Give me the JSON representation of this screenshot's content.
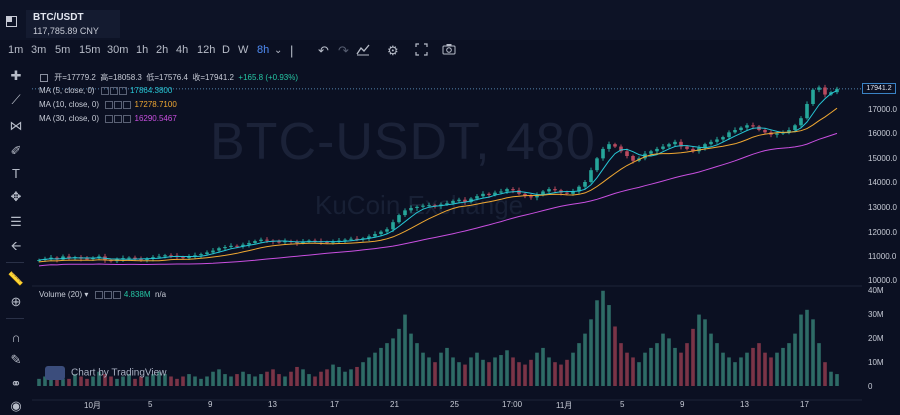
{
  "header": {
    "symbol": "BTC/USDT",
    "price_cny": "117,785.89 CNY"
  },
  "toolbar": {
    "timeframes": [
      "1m",
      "3m",
      "5m",
      "15m",
      "30m",
      "1h",
      "2h",
      "4h",
      "12h",
      "D",
      "W",
      "8h"
    ],
    "active_timeframe": "8h",
    "icons": [
      "chevron-down-icon",
      "undo-icon",
      "redo-icon",
      "indicators-icon",
      "settings-icon",
      "fullscreen-icon",
      "camera-icon"
    ]
  },
  "left_tools": [
    "crosshair-icon",
    "trendline-icon",
    "pitchfork-icon",
    "brush-icon",
    "text-icon",
    "pattern-icon",
    "fib-icon",
    "back-arrow-icon",
    "ruler-icon",
    "zoom-icon",
    "magnet-icon",
    "lock-draw-icon",
    "lock-icon",
    "eye-icon"
  ],
  "ohlc": {
    "open_label": "开=",
    "open": "17779.2",
    "high_label": "高=",
    "high": "18058.3",
    "low_label": "低=",
    "low": "17576.4",
    "close_label": "收=",
    "close": "17941.2",
    "change": "+165.8 (+0.93%)"
  },
  "indicators": [
    {
      "label": "MA (5, close, 0)",
      "value": "17864.3800",
      "color": "#26c6d4"
    },
    {
      "label": "MA (10, close, 0)",
      "value": "17278.7100",
      "color": "#f0a832"
    },
    {
      "label": "MA (30, close, 0)",
      "value": "16290.5467",
      "color": "#c94fe0"
    }
  ],
  "volume_indicator": {
    "label": "Volume (20)",
    "value": "4.838M",
    "extra": "n/a"
  },
  "price_axis": [
    "17000.0",
    "16000.0",
    "15000.0",
    "14000.0",
    "13000.0",
    "12000.0",
    "11000.0",
    "10000.0"
  ],
  "current_price_tag": "17941.2",
  "volume_axis": [
    "40M",
    "30M",
    "20M",
    "10M",
    "0"
  ],
  "time_axis": [
    "10月",
    "5",
    "9",
    "13",
    "17",
    "21",
    "25",
    "17:00",
    "11月",
    "5",
    "9",
    "13",
    "17"
  ],
  "watermark": {
    "big": "BTC-USDT, 480",
    "small": "KuCoin Exchange"
  },
  "tv_logo": "Chart by TradingView",
  "colors": {
    "up": "#26a69a",
    "down": "#b94a5e",
    "bg": "#0b1022",
    "accent": "#4f8cf5"
  },
  "chart_data": {
    "type": "candlestick",
    "price_range": [
      9600,
      18400
    ],
    "volume_range": [
      0,
      42
    ],
    "closes": [
      10700,
      10750,
      10800,
      10720,
      10850,
      10780,
      10820,
      10760,
      10740,
      10800,
      10850,
      10700,
      10650,
      10720,
      10780,
      10800,
      10740,
      10700,
      10760,
      10820,
      10850,
      10900,
      10880,
      10820,
      10780,
      10860,
      10900,
      10950,
      11020,
      11100,
      11200,
      11250,
      11300,
      11280,
      11350,
      11420,
      11500,
      11560,
      11520,
      11480,
      11450,
      11500,
      11470,
      11420,
      11480,
      11520,
      11500,
      11460,
      11430,
      11480,
      11520,
      11560,
      11600,
      11580,
      11620,
      11700,
      11800,
      11900,
      12000,
      12300,
      12600,
      12800,
      12900,
      12950,
      13000,
      13020,
      12980,
      13050,
      13100,
      13200,
      13250,
      13150,
      13300,
      13400,
      13500,
      13450,
      13550,
      13600,
      13700,
      13650,
      13500,
      13400,
      13350,
      13450,
      13600,
      13700,
      13650,
      13550,
      13500,
      13600,
      13800,
      14000,
      14500,
      15000,
      15400,
      15600,
      15500,
      15300,
      15100,
      14900,
      15000,
      15200,
      15300,
      15400,
      15500,
      15600,
      15700,
      15500,
      15400,
      15300,
      15450,
      15600,
      15700,
      15800,
      15900,
      16100,
      16200,
      16300,
      16400,
      16350,
      16200,
      16100,
      16000,
      16050,
      16100,
      16200,
      16400,
      16700,
      17300,
      17900,
      18000,
      17700,
      17800,
      17941
    ],
    "volumes_m": [
      3,
      4,
      5,
      4,
      3,
      3,
      5,
      4,
      3,
      4,
      6,
      5,
      4,
      3,
      4,
      5,
      3,
      4,
      4,
      5,
      6,
      5,
      4,
      3,
      4,
      5,
      4,
      3,
      4,
      6,
      7,
      5,
      4,
      5,
      6,
      5,
      4,
      5,
      6,
      7,
      5,
      4,
      6,
      8,
      7,
      5,
      4,
      6,
      7,
      9,
      8,
      6,
      7,
      8,
      10,
      12,
      14,
      16,
      18,
      20,
      24,
      30,
      22,
      18,
      14,
      12,
      10,
      14,
      16,
      12,
      10,
      9,
      12,
      14,
      11,
      10,
      12,
      13,
      15,
      12,
      10,
      9,
      11,
      14,
      16,
      12,
      10,
      9,
      11,
      14,
      18,
      22,
      28,
      36,
      40,
      34,
      25,
      18,
      14,
      12,
      10,
      14,
      16,
      18,
      22,
      20,
      16,
      14,
      18,
      24,
      30,
      28,
      22,
      18,
      14,
      12,
      10,
      12,
      14,
      16,
      18,
      14,
      12,
      14,
      16,
      18,
      22,
      30,
      32,
      28,
      18,
      10,
      6,
      5
    ],
    "ma5_last": 17864.38,
    "ma10_last": 17278.71,
    "ma30_last": 16290.5467
  }
}
